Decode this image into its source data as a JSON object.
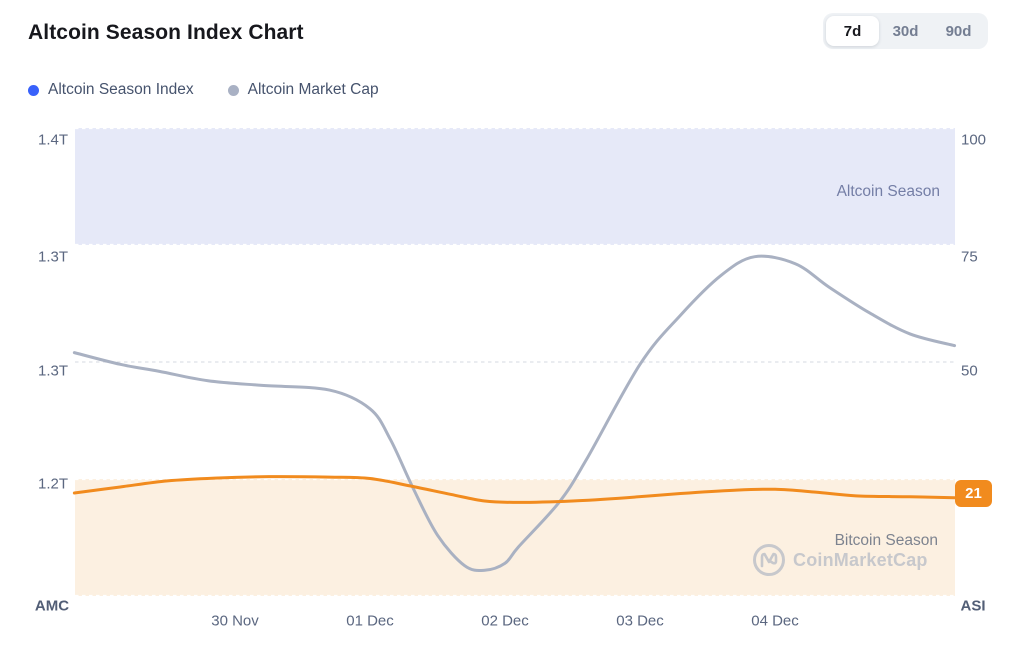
{
  "header": {
    "title": "Altcoin Season Index Chart",
    "ranges": [
      "7d",
      "30d",
      "90d"
    ],
    "active_range": "7d"
  },
  "legend": [
    {
      "label": "Altcoin Season Index",
      "color": "#3861fb"
    },
    {
      "label": "Altcoin Market Cap",
      "color": "#a9b1c4"
    }
  ],
  "watermark": {
    "text": "CoinMarketCap"
  },
  "chart_data": {
    "type": "line",
    "x_tick_labels": [
      "30 Nov",
      "01 Dec",
      "02 Dec",
      "03 Dec",
      "04 Dec"
    ],
    "left_axis": {
      "label": "AMC",
      "tick_labels": [
        "1.4T",
        "1.3T",
        "1.3T",
        "1.2T"
      ],
      "range": [
        1.2,
        1.4
      ],
      "unit": "T"
    },
    "right_axis": {
      "label": "ASI",
      "tick_labels": [
        "100",
        "75",
        "50"
      ],
      "range": [
        0,
        100
      ]
    },
    "grid": "horizontal-dashed",
    "bands": [
      {
        "label": "Altcoin Season",
        "axis": "right",
        "from": 75,
        "to": 100,
        "color": "#e6e9f8"
      },
      {
        "label": "Bitcoin Season",
        "axis": "right",
        "from": 0,
        "to": 25,
        "color": "#fcf0e1"
      }
    ],
    "series": [
      {
        "name": "Altcoin Market Cap",
        "axis": "left",
        "color": "#a9b1c2",
        "x_days_from_30nov": [
          -1.19,
          -0.85,
          -0.56,
          -0.2,
          0.2,
          0.7,
          1.0,
          1.15,
          1.32,
          1.5,
          1.7,
          1.85,
          2.0,
          2.1,
          2.4,
          2.6,
          3.0,
          3.3,
          3.6,
          3.85,
          4.15,
          4.4,
          4.7,
          5.0,
          5.33
        ],
        "values": [
          1.304,
          1.299,
          1.296,
          1.292,
          1.29,
          1.288,
          1.28,
          1.267,
          1.246,
          1.226,
          1.213,
          1.211,
          1.214,
          1.221,
          1.24,
          1.258,
          1.299,
          1.32,
          1.337,
          1.345,
          1.342,
          1.332,
          1.321,
          1.312,
          1.307
        ]
      },
      {
        "name": "Altcoin Season Index",
        "axis": "right",
        "color": "#f18b1e",
        "x_days_from_30nov": [
          -1.19,
          -0.85,
          -0.5,
          -0.15,
          0.25,
          0.7,
          1.0,
          1.3,
          1.6,
          1.85,
          2.1,
          2.5,
          2.9,
          3.3,
          3.7,
          4.0,
          4.3,
          4.6,
          5.0,
          5.33
        ],
        "values": [
          22.0,
          23.3,
          24.6,
          25.2,
          25.5,
          25.4,
          25.1,
          23.5,
          21.7,
          20.3,
          20.0,
          20.3,
          21.0,
          21.9,
          22.6,
          22.8,
          22.2,
          21.4,
          21.2,
          21.0
        ]
      }
    ],
    "current_index_value": "21"
  }
}
